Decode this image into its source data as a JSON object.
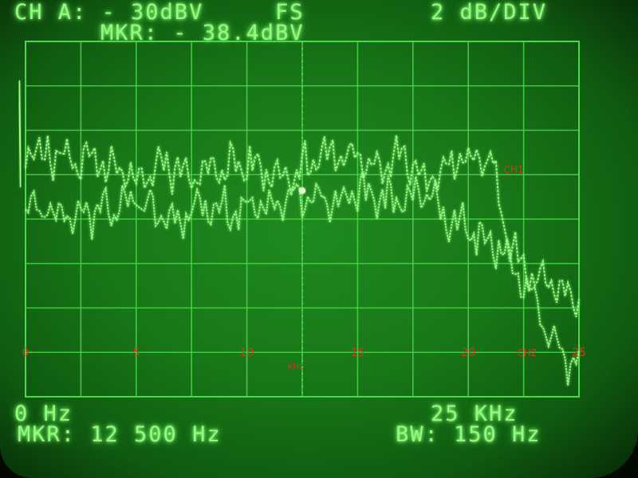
{
  "header": {
    "channel": "CH A: - 30dBV",
    "fs": "FS",
    "scale": "2 dB/DIV",
    "marker_level": "MKR: - 38.4dBV"
  },
  "footer": {
    "start_freq": "0 Hz",
    "stop_freq": "25 KHz",
    "marker_freq": "MKR: 12 500 Hz",
    "bandwidth": "BW: 150 Hz"
  },
  "colors": {
    "trace": "#9dff86",
    "grid": "#48d848",
    "annotation": "#d4381c"
  },
  "chart_data": {
    "type": "line",
    "xlabel": "kHz",
    "x_ticks": [
      "0",
      "5",
      "10",
      "15",
      "20",
      "25"
    ],
    "xlim": [
      0,
      25
    ],
    "ylim": [
      -50,
      -30
    ],
    "grid": true,
    "grid_divisions": {
      "x": 10,
      "y": 8
    },
    "marker": {
      "x": 12.5,
      "y": -38.4
    },
    "series": [
      {
        "name": "CH1",
        "x": [
          0,
          1,
          2,
          3,
          4,
          5,
          6,
          7,
          8,
          9,
          10,
          11,
          12,
          13,
          14,
          15,
          16,
          17,
          18,
          19,
          20,
          21,
          22,
          23,
          24,
          25
        ],
        "y": [
          -36.2,
          -36.3,
          -36.6,
          -36.8,
          -37.4,
          -37.8,
          -37.0,
          -37.2,
          -37.6,
          -37.0,
          -36.9,
          -37.3,
          -37.5,
          -36.6,
          -36.3,
          -36.7,
          -36.9,
          -36.5,
          -37.8,
          -37.3,
          -36.5,
          -36.8,
          -42.0,
          -43.5,
          -44.0,
          -44.5
        ]
      },
      {
        "name": "CH2",
        "x": [
          0,
          1,
          2,
          3,
          4,
          5,
          6,
          7,
          8,
          9,
          10,
          11,
          12,
          13,
          14,
          15,
          16,
          17,
          18,
          19,
          20,
          21,
          22,
          23,
          24,
          25
        ],
        "y": [
          -39.0,
          -39.4,
          -39.8,
          -39.6,
          -39.2,
          -38.9,
          -39.7,
          -39.9,
          -39.3,
          -39.5,
          -39.6,
          -39.4,
          -38.6,
          -38.9,
          -38.8,
          -38.5,
          -38.7,
          -39.2,
          -38.6,
          -39.7,
          -40.6,
          -41.2,
          -42.3,
          -44.8,
          -47.3,
          -48.4
        ]
      }
    ],
    "annotations": [
      "CH1",
      "CH2",
      "kHz"
    ]
  }
}
